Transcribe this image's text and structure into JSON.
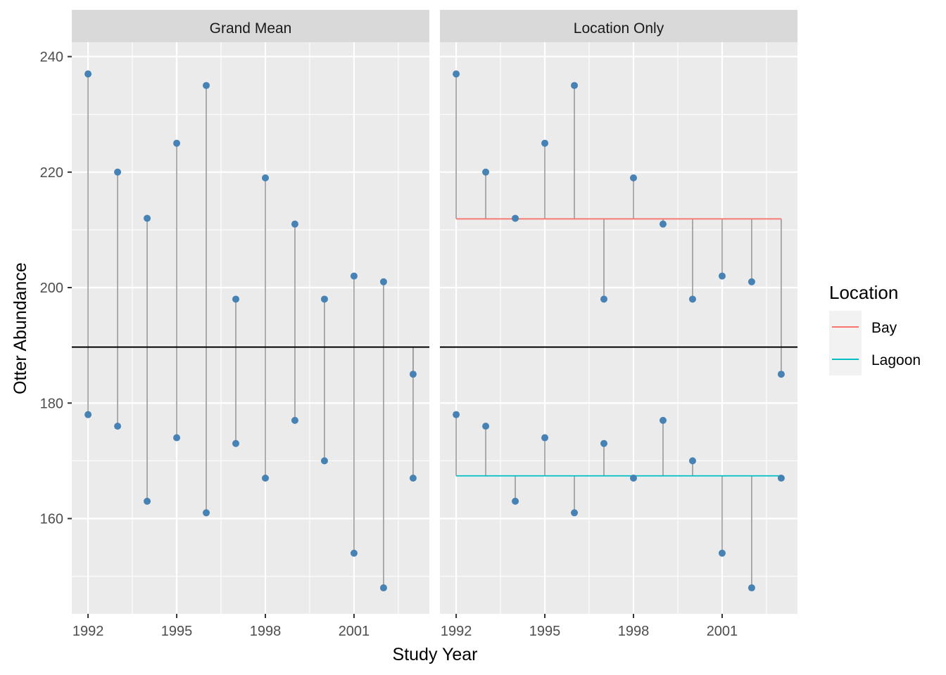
{
  "chart_data": {
    "type": "scatter",
    "xlabel": "Study Year",
    "ylabel": "Otter Abundance",
    "x_ticks": [
      1992,
      1995,
      1998,
      2001
    ],
    "y_ticks": [
      160,
      180,
      200,
      220,
      240
    ],
    "xlim": [
      1991.45,
      2003.55
    ],
    "ylim": [
      143.5,
      242.5
    ],
    "grid": true,
    "grand_mean": 189.7,
    "colors": {
      "point": "#4682b4",
      "segment": "#999999",
      "grand_mean_line": "#000000",
      "Bay": "#F8766D",
      "Lagoon": "#00BFC4",
      "panel_bg": "#ebebeb",
      "strip_bg": "#d9d9d9"
    },
    "legend": {
      "title": "Location",
      "position": "right",
      "entries": [
        {
          "name": "Bay",
          "color": "#F8766D"
        },
        {
          "name": "Lagoon",
          "color": "#00BFC4"
        }
      ]
    },
    "panels": [
      {
        "strip": "Grand Mean",
        "reference": "grand_mean",
        "points": [
          {
            "x": 1992,
            "y": 237,
            "location": "Bay"
          },
          {
            "x": 1993,
            "y": 220,
            "location": "Bay"
          },
          {
            "x": 1994,
            "y": 212,
            "location": "Bay"
          },
          {
            "x": 1995,
            "y": 225,
            "location": "Bay"
          },
          {
            "x": 1996,
            "y": 235,
            "location": "Bay"
          },
          {
            "x": 1997,
            "y": 198,
            "location": "Bay"
          },
          {
            "x": 1998,
            "y": 219,
            "location": "Bay"
          },
          {
            "x": 1999,
            "y": 211,
            "location": "Bay"
          },
          {
            "x": 2000,
            "y": 198,
            "location": "Bay"
          },
          {
            "x": 2001,
            "y": 202,
            "location": "Bay"
          },
          {
            "x": 2002,
            "y": 201,
            "location": "Bay"
          },
          {
            "x": 2003,
            "y": 185,
            "location": "Bay"
          },
          {
            "x": 1992,
            "y": 178,
            "location": "Lagoon"
          },
          {
            "x": 1993,
            "y": 176,
            "location": "Lagoon"
          },
          {
            "x": 1994,
            "y": 163,
            "location": "Lagoon"
          },
          {
            "x": 1995,
            "y": 174,
            "location": "Lagoon"
          },
          {
            "x": 1996,
            "y": 161,
            "location": "Lagoon"
          },
          {
            "x": 1997,
            "y": 173,
            "location": "Lagoon"
          },
          {
            "x": 1998,
            "y": 167,
            "location": "Lagoon"
          },
          {
            "x": 1999,
            "y": 177,
            "location": "Lagoon"
          },
          {
            "x": 2000,
            "y": 170,
            "location": "Lagoon"
          },
          {
            "x": 2001,
            "y": 154,
            "location": "Lagoon"
          },
          {
            "x": 2002,
            "y": 148,
            "location": "Lagoon"
          },
          {
            "x": 2003,
            "y": 167,
            "location": "Lagoon"
          }
        ]
      },
      {
        "strip": "Location Only",
        "reference": "location_mean",
        "location_means": {
          "Bay": 211.9,
          "Lagoon": 167.4
        },
        "points": [
          {
            "x": 1992,
            "y": 237,
            "location": "Bay"
          },
          {
            "x": 1993,
            "y": 220,
            "location": "Bay"
          },
          {
            "x": 1994,
            "y": 212,
            "location": "Bay"
          },
          {
            "x": 1995,
            "y": 225,
            "location": "Bay"
          },
          {
            "x": 1996,
            "y": 235,
            "location": "Bay"
          },
          {
            "x": 1997,
            "y": 198,
            "location": "Bay"
          },
          {
            "x": 1998,
            "y": 219,
            "location": "Bay"
          },
          {
            "x": 1999,
            "y": 211,
            "location": "Bay"
          },
          {
            "x": 2000,
            "y": 198,
            "location": "Bay"
          },
          {
            "x": 2001,
            "y": 202,
            "location": "Bay"
          },
          {
            "x": 2002,
            "y": 201,
            "location": "Bay"
          },
          {
            "x": 2003,
            "y": 185,
            "location": "Bay"
          },
          {
            "x": 1992,
            "y": 178,
            "location": "Lagoon"
          },
          {
            "x": 1993,
            "y": 176,
            "location": "Lagoon"
          },
          {
            "x": 1994,
            "y": 163,
            "location": "Lagoon"
          },
          {
            "x": 1995,
            "y": 174,
            "location": "Lagoon"
          },
          {
            "x": 1996,
            "y": 161,
            "location": "Lagoon"
          },
          {
            "x": 1997,
            "y": 173,
            "location": "Lagoon"
          },
          {
            "x": 1998,
            "y": 167,
            "location": "Lagoon"
          },
          {
            "x": 1999,
            "y": 177,
            "location": "Lagoon"
          },
          {
            "x": 2000,
            "y": 170,
            "location": "Lagoon"
          },
          {
            "x": 2001,
            "y": 154,
            "location": "Lagoon"
          },
          {
            "x": 2002,
            "y": 148,
            "location": "Lagoon"
          },
          {
            "x": 2003,
            "y": 167,
            "location": "Lagoon"
          }
        ]
      }
    ]
  }
}
